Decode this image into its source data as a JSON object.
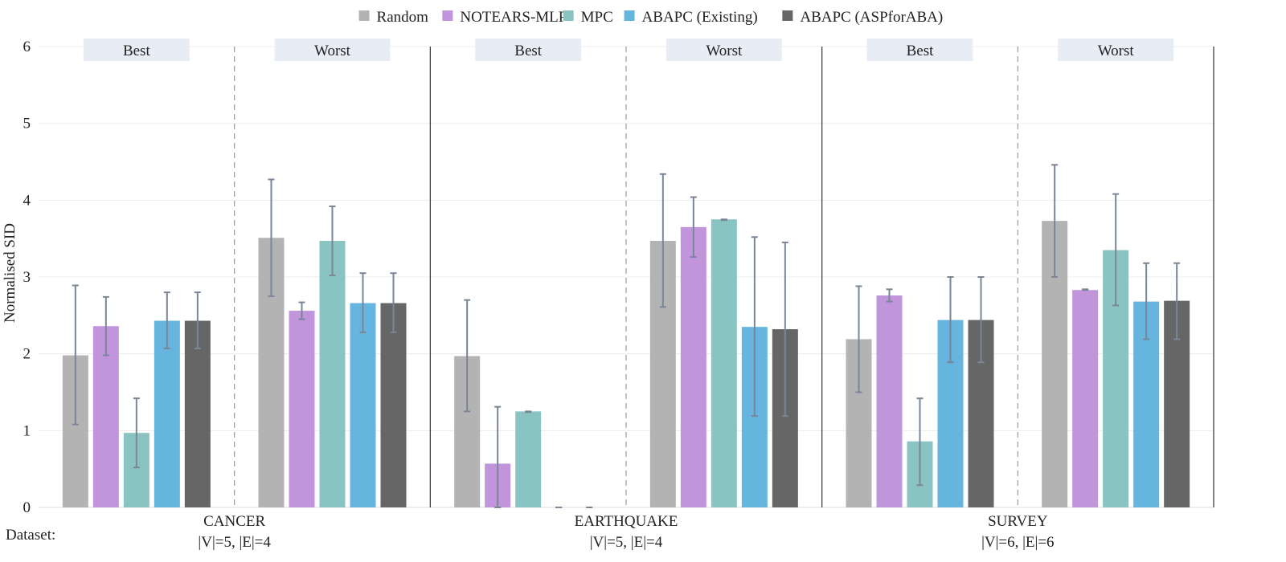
{
  "chart_data": {
    "type": "bar",
    "title": "",
    "ylabel": "Normalised SID",
    "xlabel": "Dataset:",
    "ylim": [
      0,
      6
    ],
    "yticks": [
      "0",
      "1",
      "2",
      "3",
      "4",
      "5",
      "6"
    ],
    "grid": true,
    "legend_position": "top-center",
    "series": [
      {
        "name": "Random",
        "color": "#b3b3b3"
      },
      {
        "name": "NOTEARS-MLP",
        "color": "#c195dc"
      },
      {
        "name": "MPC",
        "color": "#8ac4c2"
      },
      {
        "name": "ABAPC (Existing)",
        "color": "#66b5de"
      },
      {
        "name": "ABAPC (ASPforABA)",
        "color": "#666666"
      }
    ],
    "groups": [
      {
        "dataset": "CANCER",
        "size": "|V|=5, |E|=4",
        "panels": [
          {
            "label": "Best",
            "values": [
              1.98,
              2.36,
              0.97,
              2.43,
              2.43
            ],
            "err_low": [
              1.08,
              1.98,
              0.52,
              2.07,
              2.07
            ],
            "err_high": [
              2.89,
              2.74,
              1.42,
              2.8,
              2.8
            ]
          },
          {
            "label": "Worst",
            "values": [
              3.51,
              2.56,
              3.47,
              2.66,
              2.66
            ],
            "err_low": [
              2.75,
              2.45,
              3.02,
              2.28,
              2.28
            ],
            "err_high": [
              4.27,
              2.67,
              3.92,
              3.05,
              3.05
            ]
          }
        ]
      },
      {
        "dataset": "EARTHQUAKE",
        "size": "|V|=5, |E|=4",
        "panels": [
          {
            "label": "Best",
            "values": [
              1.97,
              0.57,
              1.25,
              0.0,
              0.0
            ],
            "err_low": [
              1.25,
              0.0,
              1.24,
              0.0,
              0.0
            ],
            "err_high": [
              2.7,
              1.31,
              1.25,
              0.0,
              0.0
            ]
          },
          {
            "label": "Worst",
            "values": [
              3.47,
              3.65,
              3.75,
              2.35,
              2.32
            ],
            "err_low": [
              2.61,
              3.26,
              3.74,
              1.19,
              1.19
            ],
            "err_high": [
              4.34,
              4.04,
              3.75,
              3.52,
              3.45
            ]
          }
        ]
      },
      {
        "dataset": "SURVEY",
        "size": "|V|=6, |E|=6",
        "panels": [
          {
            "label": "Best",
            "values": [
              2.19,
              2.76,
              0.86,
              2.44,
              2.44
            ],
            "err_low": [
              1.5,
              2.68,
              0.29,
              1.89,
              1.89
            ],
            "err_high": [
              2.88,
              2.84,
              1.42,
              3.0,
              3.0
            ]
          },
          {
            "label": "Worst",
            "values": [
              3.73,
              2.83,
              3.35,
              2.68,
              2.69
            ],
            "err_low": [
              3.0,
              2.83,
              2.63,
              2.19,
              2.19
            ],
            "err_high": [
              4.46,
              2.84,
              4.08,
              3.18,
              3.18
            ]
          }
        ]
      }
    ]
  }
}
